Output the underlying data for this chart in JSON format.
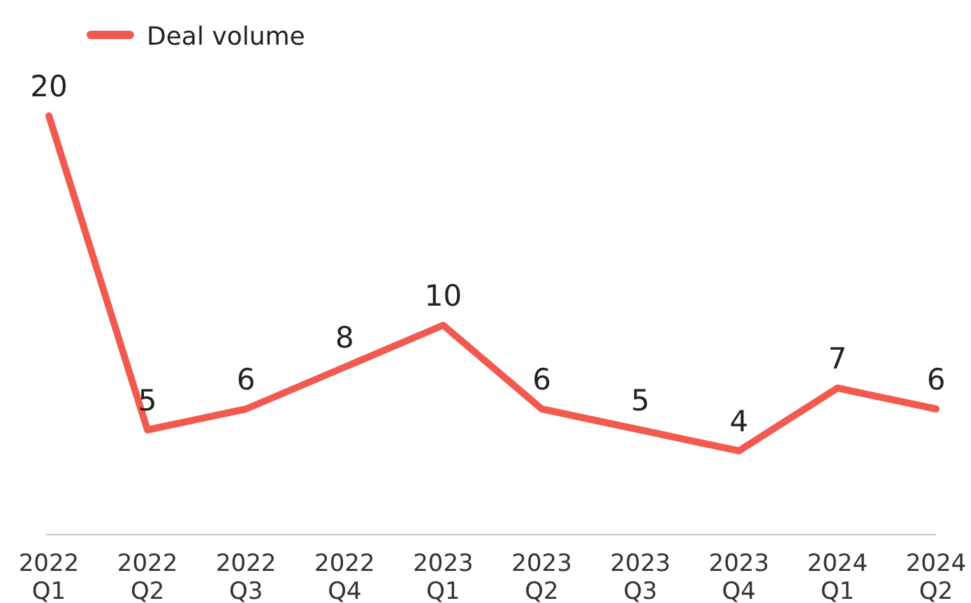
{
  "chart_data": {
    "type": "line",
    "categories": [
      "2022 Q1",
      "2022 Q2",
      "2022 Q3",
      "2022 Q4",
      "2023 Q1",
      "2023 Q2",
      "2023 Q3",
      "2023 Q4",
      "2024 Q1",
      "2024 Q2"
    ],
    "series": [
      {
        "name": "Deal volume",
        "color": "#f25a50",
        "values": [
          20,
          5,
          6,
          8,
          10,
          6,
          5,
          4,
          7,
          6
        ]
      }
    ],
    "data_labels": true,
    "legend": "top left",
    "grid": false,
    "marker": "none",
    "line_style": "solid",
    "tick_labels": "x"
  }
}
